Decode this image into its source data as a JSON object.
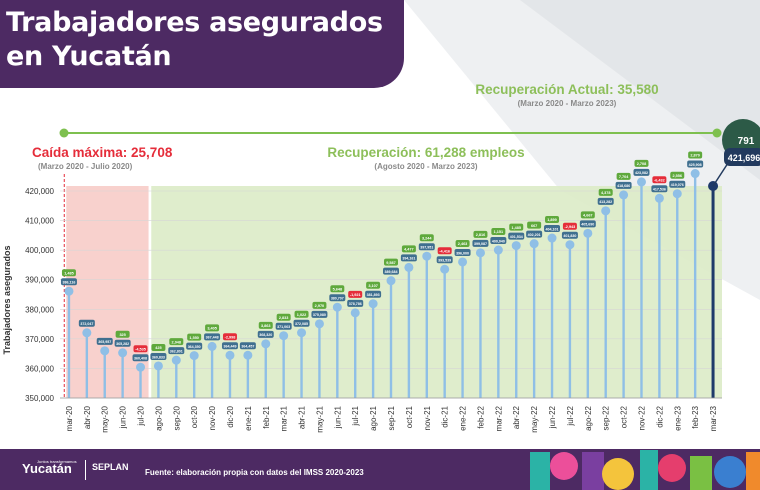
{
  "chart_data": {
    "type": "bar",
    "title": "Trabajadores asegurados en Yucatán",
    "ylabel": "Trabajadores asegurados",
    "ylim": [
      350000,
      420000
    ],
    "yticks": [
      350000,
      360000,
      370000,
      380000,
      390000,
      400000,
      410000,
      420000
    ],
    "ytick_labels": [
      "350,000",
      "360,000",
      "370,000",
      "380,000",
      "390,000",
      "400,000",
      "410,000",
      "420,000"
    ],
    "categories": [
      "mar-20",
      "abr-20",
      "may-20",
      "jun-20",
      "jul-20",
      "ago-20",
      "sep-20",
      "oct-20",
      "nov-20",
      "dic-20",
      "ene-21",
      "feb-21",
      "mar-21",
      "abr-21",
      "may-21",
      "jun-21",
      "jul-21",
      "ago-21",
      "sep-21",
      "oct-21",
      "nov-21",
      "dic-21",
      "ene-22",
      "feb-22",
      "mar-22",
      "abr-22",
      "may-22",
      "jun-22",
      "jul-22",
      "ago-22",
      "sep-22",
      "oct-22",
      "nov-22",
      "dic-22",
      "ene-23",
      "feb-23",
      "mar-23"
    ],
    "values": [
      386116,
      372047,
      365957,
      365282,
      360408,
      360833,
      362801,
      364350,
      367448,
      364449,
      364457,
      368320,
      371063,
      372085,
      375080,
      380707,
      378786,
      381893,
      389684,
      394161,
      397951,
      393539,
      396000,
      399087,
      400040,
      401534,
      402201,
      404101,
      401830,
      405690,
      413282,
      418686,
      423082,
      417536,
      419076,
      425908,
      421696
    ],
    "value_labels": [
      "386,116",
      "372,047",
      "365,957",
      "365,282",
      "360,408",
      "360,833",
      "362,801",
      "364,350",
      "367,448",
      "364,449",
      "364,457",
      "368,320",
      "371,063",
      "372,085",
      "375,080",
      "380,707",
      "378,786",
      "381,893",
      "389,684",
      "394,161",
      "397,951",
      "393,539",
      "396,000",
      "399,087",
      "400,040",
      "401,534",
      "402,201",
      "404,101",
      "401,830",
      "405,690",
      "413,282",
      "418,686",
      "423,082",
      "417,536",
      "419,076",
      "425,908",
      "421,696"
    ],
    "changes": [
      "1,485",
      "",
      "",
      "325",
      "-4,535",
      "425",
      "2,048",
      "1,550",
      "3,405",
      "-2,998",
      "",
      "3,863",
      "2,833",
      "1,022",
      "2,970",
      "5,648",
      "-1,921",
      "3,107",
      "9,587",
      "4,477",
      "3,244",
      "-4,416",
      "2,463",
      "2,816",
      "1,151",
      "1,485",
      "667",
      "1,899",
      "-2,943",
      "4,667",
      "4,378",
      "7,704",
      "2,708",
      "-6,432",
      "2,556",
      "2,870",
      ""
    ],
    "change_signs": [
      1,
      0,
      0,
      1,
      -1,
      1,
      1,
      1,
      1,
      -1,
      0,
      1,
      1,
      1,
      1,
      1,
      -1,
      1,
      1,
      1,
      1,
      -1,
      1,
      1,
      1,
      1,
      1,
      1,
      -1,
      1,
      1,
      1,
      1,
      -1,
      1,
      1,
      0
    ],
    "annotations": {
      "recuperacion_actual": "Recuperación Actual: 35,580",
      "recuperacion_actual_periodo": "(Marzo 2020 - Marzo 2023)",
      "caida_maxima": "Caída máxima: 25,708",
      "caida_maxima_periodo": "(Marzo 2020 - Julio 2020)",
      "recuperacion_total": "Recuperación: 61,288 empleos",
      "recuperacion_total_periodo": "(Agosto 2020 - Marzo 2023)"
    },
    "callout": {
      "gain": "791",
      "total": "421,696"
    },
    "grid": true,
    "colors": {
      "bar": "#8fbfe6",
      "bar_last": "#1e3a6a",
      "label_positive": "#5fa93c",
      "label_negative": "#e52d3a",
      "value_pill": "#3f6f8f",
      "drop_zone": "#f7c9c4",
      "recovery_zone": "#dcebc7",
      "line_green": "#7ec04f"
    }
  },
  "footer": {
    "source": "Fuente: elaboración propia con datos del IMSS 2020-2023",
    "logo_name": "Yucatán",
    "logo_tagline": "Juntos transformamos",
    "logo_seplan": "SEPLAN"
  }
}
